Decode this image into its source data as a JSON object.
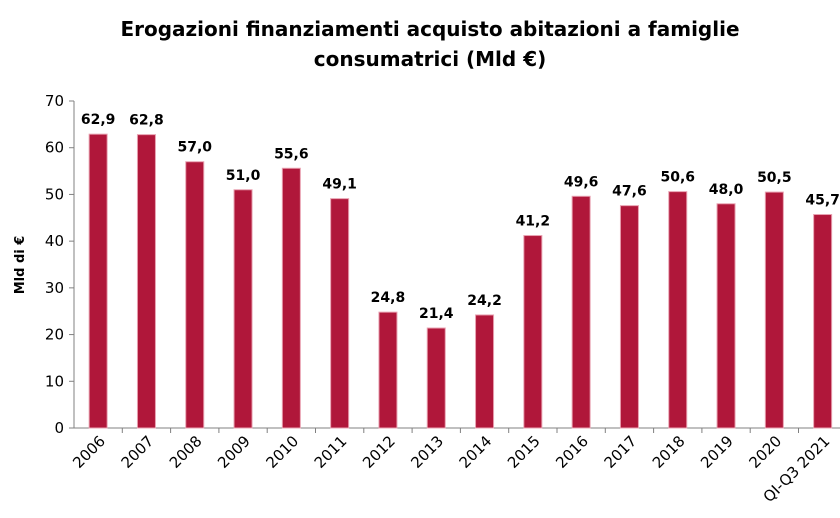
{
  "chart_data": {
    "type": "bar",
    "title": [
      "Erogazioni finanziamenti acquisto abitazioni a famiglie",
      "consumatrici (Mld €)"
    ],
    "y_label": "Mld di €",
    "categories": [
      "2006",
      "2007",
      "2008",
      "2009",
      "2010",
      "2011",
      "2012",
      "2013",
      "2014",
      "2015",
      "2016",
      "2017",
      "2018",
      "2019",
      "2020",
      "QI-Q3 2021"
    ],
    "values": [
      62.9,
      62.8,
      57.0,
      51.0,
      55.6,
      49.1,
      24.8,
      21.4,
      24.2,
      41.2,
      49.6,
      47.6,
      50.6,
      48.0,
      50.5,
      45.7
    ],
    "value_labels": [
      "62,9",
      "62,8",
      "57,0",
      "51,0",
      "55,6",
      "49,1",
      "24,8",
      "21,4",
      "24,2",
      "41,2",
      "49,6",
      "47,6",
      "50,6",
      "48,0",
      "50,5",
      "45,7"
    ],
    "color": "#b0173a",
    "ylim": [
      0,
      70
    ],
    "yticks": [
      0,
      10,
      20,
      30,
      40,
      50,
      60,
      70
    ],
    "grid": false
  }
}
